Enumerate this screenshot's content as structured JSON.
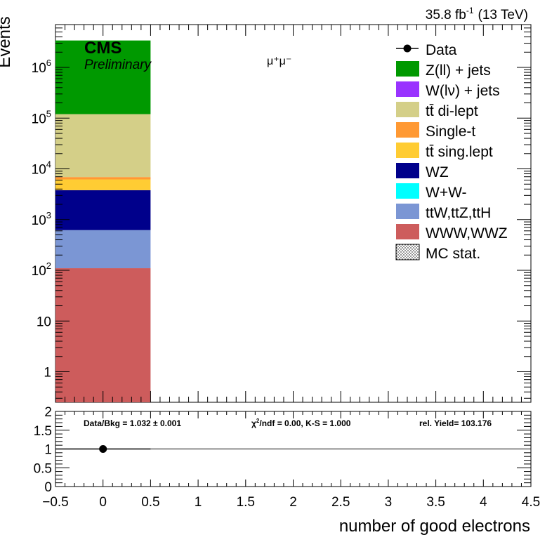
{
  "header": {
    "lumi_text": "35.8 fb",
    "lumi_exp": "-1",
    "energy": "(13 TeV)",
    "cms": "CMS",
    "preliminary": "Preliminary",
    "channel": "μ⁺μ⁻"
  },
  "chart_data": [
    {
      "type": "bar",
      "stacked": true,
      "log_y": true,
      "ylabel": "Events",
      "xlim": [
        -0.5,
        4.5
      ],
      "ylim": [
        0.25,
        7000000
      ],
      "y_ticks": [
        {
          "value": 1,
          "label": "1",
          "exp": ""
        },
        {
          "value": 10,
          "label": "10",
          "exp": ""
        },
        {
          "value": 100,
          "label": "10",
          "exp": "2"
        },
        {
          "value": 1000,
          "label": "10",
          "exp": "3"
        },
        {
          "value": 10000,
          "label": "10",
          "exp": "4"
        },
        {
          "value": 100000,
          "label": "10",
          "exp": "5"
        },
        {
          "value": 1000000,
          "label": "10",
          "exp": "6"
        }
      ],
      "bin": [
        -0.5,
        0.5
      ],
      "stack": [
        {
          "name": "WWW,WWZ",
          "color": "#cd5c5c",
          "cumulative": 110
        },
        {
          "name": "ttW,ttZ,ttH",
          "color": "#7b96d4",
          "cumulative": 620
        },
        {
          "name": "W+W-",
          "color": "#00ffff",
          "cumulative": 620
        },
        {
          "name": "WZ",
          "color": "#00008b",
          "cumulative": 3800
        },
        {
          "name": "tt̄ sing.lept",
          "color": "#ffcc33",
          "cumulative": 6200
        },
        {
          "name": "Single-t",
          "color": "#ff9933",
          "cumulative": 6900
        },
        {
          "name": "tt̄ di-lept",
          "color": "#d4cf88",
          "cumulative": 120000
        },
        {
          "name": "W(lν) + jets",
          "color": "#9933ff",
          "cumulative": 120000
        },
        {
          "name": "Z(ll) + jets",
          "color": "#009900",
          "cumulative": 3400000
        }
      ],
      "legend": [
        {
          "label": "Data",
          "kind": "marker",
          "color": "#000000"
        },
        {
          "label": "Z(ll) + jets",
          "kind": "box",
          "color": "#009900"
        },
        {
          "label": "W(lν) + jets",
          "kind": "box",
          "color": "#9933ff"
        },
        {
          "label": "tt̄ di-lept",
          "kind": "box",
          "color": "#d4cf88"
        },
        {
          "label": "Single-t",
          "kind": "box",
          "color": "#ff9933"
        },
        {
          "label": "tt̄ sing.lept",
          "kind": "box",
          "color": "#ffcc33"
        },
        {
          "label": "WZ",
          "kind": "box",
          "color": "#00008b"
        },
        {
          "label": "W+W-",
          "kind": "box",
          "color": "#00ffff"
        },
        {
          "label": "ttW,ttZ,ttH",
          "kind": "box",
          "color": "#7b96d4"
        },
        {
          "label": "WWW,WWZ",
          "kind": "box",
          "color": "#cd5c5c"
        },
        {
          "label": "MC stat.",
          "kind": "hatch",
          "color": "#000000"
        }
      ],
      "legend_position": "top-right"
    },
    {
      "type": "scatter",
      "xlabel": "number of good electrons",
      "xlim": [
        -0.5,
        4.5
      ],
      "ylim": [
        0,
        2
      ],
      "x_ticks": [
        "−0.5",
        "0",
        "0.5",
        "1",
        "1.5",
        "2",
        "2.5",
        "3",
        "3.5",
        "4",
        "4.5"
      ],
      "y_ticks": [
        "0",
        "0.5",
        "1",
        "1.5",
        "2"
      ],
      "points": [
        {
          "x": 0,
          "y": 1.0
        }
      ],
      "reference_line": 1,
      "stats": {
        "ratio": "Data/Bkg = 1.032 ± 0.001",
        "chi2_prefix": "χ",
        "chi2_sup": "2",
        "chi2_rest": "/ndf = 0.00,   K-S = 1.000",
        "yield": "rel. Yield= 103.176"
      }
    }
  ]
}
